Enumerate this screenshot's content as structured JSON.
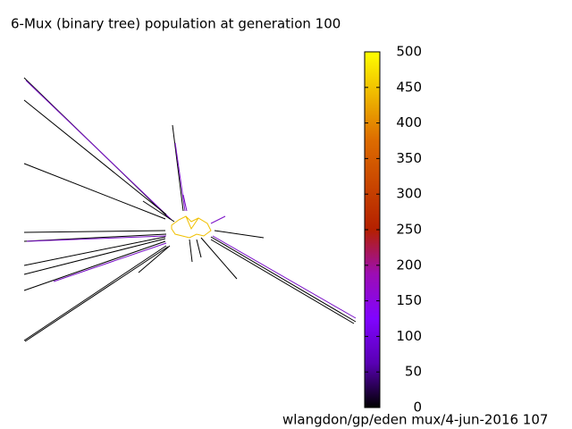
{
  "chart_data": {
    "type": "tree",
    "title": "6-Mux (binary tree) population at generation 100",
    "footer": "wlangdon/gp/eden  mux/4-jun-2016 107",
    "colorbar": {
      "lim": [
        0,
        500
      ],
      "ticks": [
        0,
        50,
        100,
        150,
        200,
        250,
        300,
        350,
        400,
        450,
        500
      ]
    }
  }
}
